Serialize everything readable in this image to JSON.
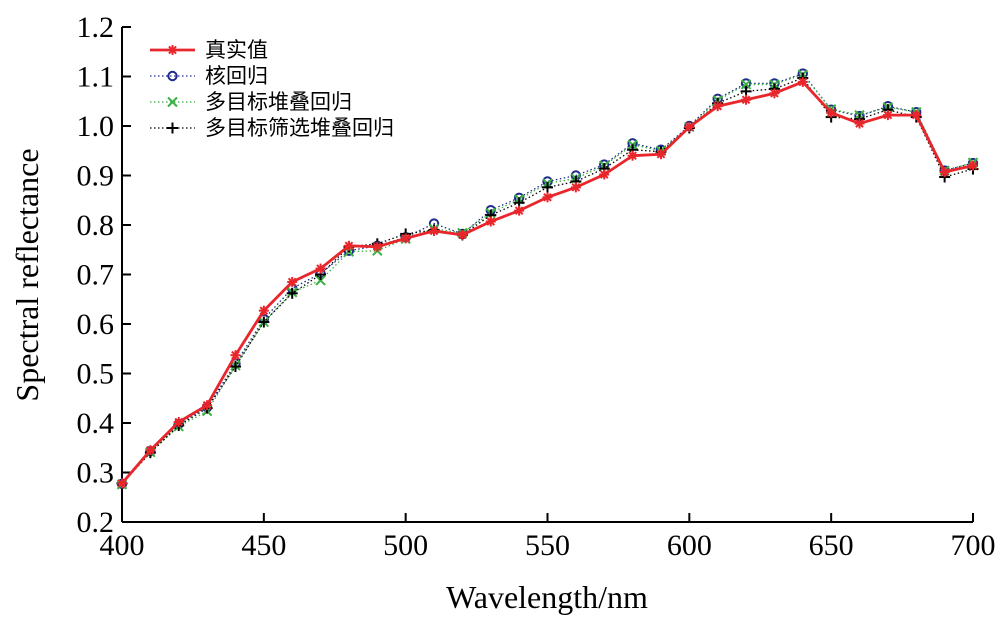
{
  "chart_data": {
    "type": "line",
    "title": "",
    "xlabel": "Wavelength/nm",
    "ylabel": "Spectral reflectance",
    "xlim": [
      400,
      700
    ],
    "ylim": [
      0.2,
      1.2
    ],
    "xticks": [
      400,
      450,
      500,
      550,
      600,
      650,
      700
    ],
    "yticks": [
      0.2,
      0.3,
      0.4,
      0.5,
      0.6,
      0.7,
      0.8,
      0.9,
      1.0,
      1.1,
      1.2
    ],
    "grid": false,
    "legend_position": "top-left",
    "x": [
      400,
      410,
      420,
      430,
      440,
      450,
      460,
      470,
      480,
      490,
      500,
      510,
      520,
      530,
      540,
      550,
      560,
      570,
      580,
      590,
      600,
      610,
      620,
      630,
      640,
      650,
      660,
      670,
      680,
      690,
      700
    ],
    "series": [
      {
        "name": "真实值",
        "color": "#e8262b",
        "line_style": "solid",
        "marker": "asterisk",
        "values": [
          0.278,
          0.345,
          0.402,
          0.436,
          0.537,
          0.627,
          0.685,
          0.712,
          0.758,
          0.756,
          0.773,
          0.788,
          0.78,
          0.807,
          0.829,
          0.856,
          0.876,
          0.902,
          0.94,
          0.943,
          0.998,
          1.04,
          1.053,
          1.066,
          1.089,
          1.027,
          1.005,
          1.022,
          1.022,
          0.907,
          0.92
        ]
      },
      {
        "name": "核回归",
        "color": "#1f2a8c",
        "line_style": "dotted",
        "marker": "circle",
        "values": [
          0.277,
          0.343,
          0.398,
          0.432,
          0.52,
          0.61,
          0.672,
          0.702,
          0.748,
          0.758,
          0.775,
          0.803,
          0.782,
          0.83,
          0.855,
          0.888,
          0.9,
          0.922,
          0.965,
          0.952,
          1.0,
          1.055,
          1.086,
          1.086,
          1.106,
          1.033,
          1.02,
          1.04,
          1.028,
          0.91,
          0.925
        ]
      },
      {
        "name": "多目标堆叠回归",
        "color": "#3cb043",
        "line_style": "dotted",
        "marker": "x",
        "values": [
          0.276,
          0.341,
          0.393,
          0.424,
          0.516,
          0.604,
          0.664,
          0.688,
          0.746,
          0.748,
          0.772,
          0.792,
          0.784,
          0.824,
          0.852,
          0.884,
          0.894,
          0.92,
          0.962,
          0.95,
          0.998,
          1.052,
          1.084,
          1.084,
          1.104,
          1.034,
          1.022,
          1.038,
          1.028,
          0.91,
          0.926
        ]
      },
      {
        "name": "多目标筛选堆叠回归",
        "color": "#000000",
        "line_style": "dotted",
        "marker": "plus",
        "values": [
          0.278,
          0.34,
          0.395,
          0.43,
          0.514,
          0.604,
          0.662,
          0.7,
          0.756,
          0.762,
          0.782,
          0.79,
          0.78,
          0.82,
          0.845,
          0.876,
          0.888,
          0.914,
          0.952,
          0.948,
          0.996,
          1.046,
          1.07,
          1.075,
          1.097,
          1.018,
          1.014,
          1.033,
          1.018,
          0.897,
          0.913
        ]
      }
    ]
  }
}
